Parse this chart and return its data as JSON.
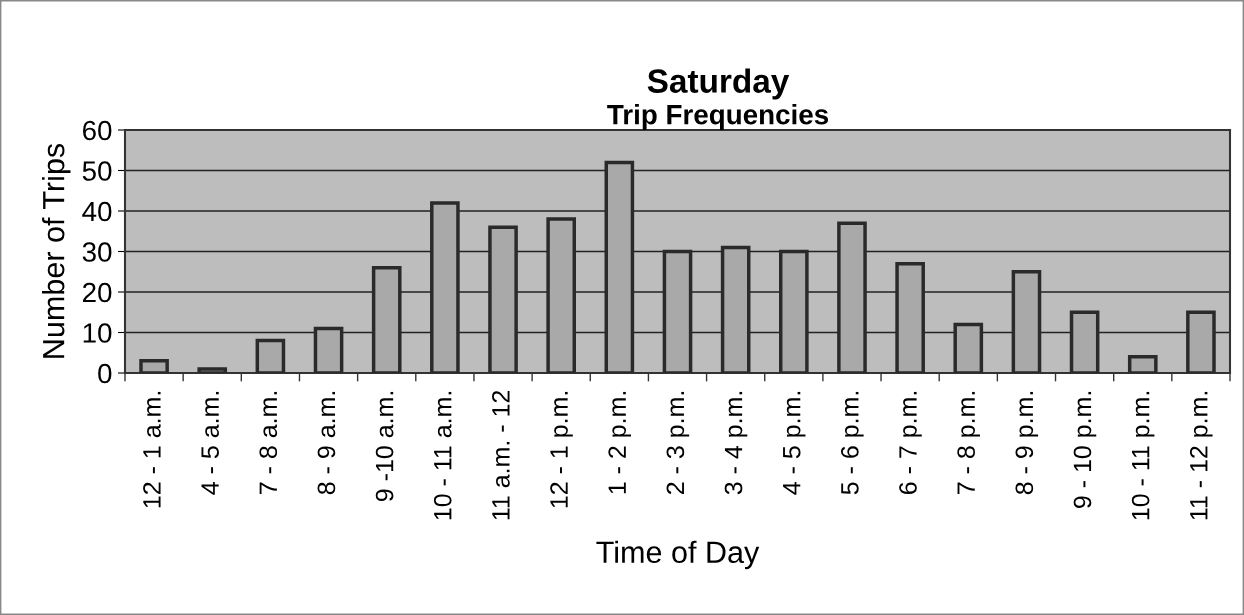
{
  "chart_data": {
    "type": "bar",
    "title": "Saturday",
    "subtitle": "Trip Frequencies",
    "xlabel": "Time of Day",
    "ylabel": "Number of Trips",
    "categories": [
      "12 - 1 a.m.",
      "4 - 5 a.m.",
      "7 - 8 a.m.",
      "8 - 9 a.m.",
      "9 -10 a.m.",
      "10 - 11 a.m.",
      "11 a.m. - 12",
      "12 - 1 p.m.",
      "1 - 2 p.m.",
      "2 - 3 p.m.",
      "3 - 4 p.m.",
      "4 - 5 p.m.",
      "5 - 6 p.m.",
      "6 - 7 p.m.",
      "7 - 8 p.m.",
      "8 - 9 p.m.",
      "9 - 10 p.m.",
      "10 - 11 p.m.",
      "11 - 12 p.m."
    ],
    "values": [
      3,
      1,
      8,
      11,
      26,
      42,
      36,
      38,
      52,
      30,
      31,
      30,
      37,
      27,
      12,
      25,
      15,
      4,
      15
    ],
    "color": "#a9a9a9",
    "ylim": [
      0,
      60
    ],
    "yticks": [
      0,
      10,
      20,
      30,
      40,
      50,
      60
    ],
    "grid": "y"
  }
}
